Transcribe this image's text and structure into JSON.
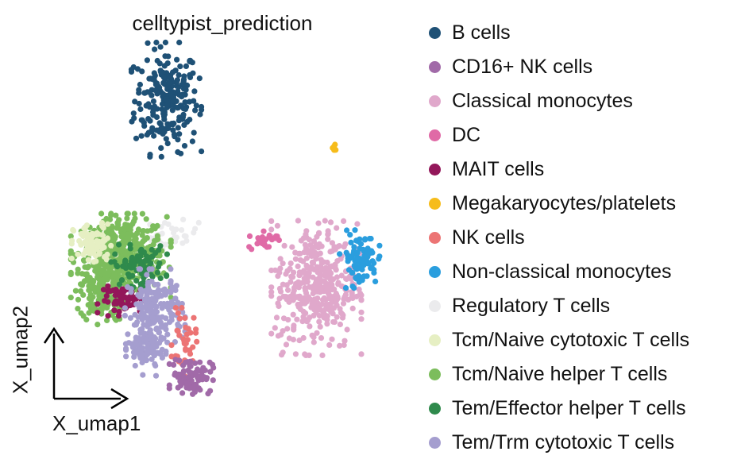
{
  "chart_data": {
    "type": "scatter",
    "title": "celltypist_prediction",
    "xlabel": "X_umap1",
    "ylabel": "X_umap2",
    "categories": [
      {
        "name": "B cells",
        "color": "#1f5176"
      },
      {
        "name": "CD16+ NK cells",
        "color": "#a16aa8"
      },
      {
        "name": "Classical monocytes",
        "color": "#e0a8cb"
      },
      {
        "name": "DC",
        "color": "#e06aa6"
      },
      {
        "name": "MAIT cells",
        "color": "#93175a"
      },
      {
        "name": "Megakaryocytes/platelets",
        "color": "#f6bc1a"
      },
      {
        "name": "NK cells",
        "color": "#ec7474"
      },
      {
        "name": "Non-classical monocytes",
        "color": "#2a9ede"
      },
      {
        "name": "Regulatory T cells",
        "color": "#ebebed"
      },
      {
        "name": "Tcm/Naive cytotoxic T cells",
        "color": "#e6efc3"
      },
      {
        "name": "Tcm/Naive helper T cells",
        "color": "#7cbd5c"
      },
      {
        "name": "Tem/Effector helper T cells",
        "color": "#2f8a4c"
      },
      {
        "name": "Tem/Trm cytotoxic T cells",
        "color": "#a59ecf"
      }
    ],
    "clusters": [
      {
        "category": "B cells",
        "cx": 2.2,
        "cy": 8.7,
        "sx": 0.35,
        "sy": 0.75,
        "n": 230
      },
      {
        "category": "Megakaryocytes/platelets",
        "cx": 5.9,
        "cy": 7.3,
        "sx": 0.05,
        "sy": 0.06,
        "n": 6
      },
      {
        "category": "Regulatory T cells",
        "cx": 2.3,
        "cy": 4.8,
        "sx": 0.3,
        "sy": 0.2,
        "n": 35
      },
      {
        "category": "Tcm/Naive helper T cells",
        "cx": 1.2,
        "cy": 4.2,
        "sx": 0.5,
        "sy": 0.55,
        "n": 420
      },
      {
        "category": "Tcm/Naive helper T cells",
        "cx": 0.8,
        "cy": 3.2,
        "sx": 0.25,
        "sy": 0.45,
        "n": 140
      },
      {
        "category": "Tcm/Naive cytotoxic T cells",
        "cx": 0.6,
        "cy": 4.5,
        "sx": 0.22,
        "sy": 0.3,
        "n": 90
      },
      {
        "category": "Tem/Effector helper T cells",
        "cx": 1.6,
        "cy": 3.9,
        "sx": 0.28,
        "sy": 0.28,
        "n": 90
      },
      {
        "category": "MAIT cells",
        "cx": 1.3,
        "cy": 2.9,
        "sx": 0.28,
        "sy": 0.2,
        "n": 60
      },
      {
        "category": "Tem/Trm cytotoxic T cells",
        "cx": 1.95,
        "cy": 2.6,
        "sx": 0.3,
        "sy": 0.55,
        "n": 190
      },
      {
        "category": "Tem/Trm cytotoxic T cells",
        "cx": 1.75,
        "cy": 1.5,
        "sx": 0.2,
        "sy": 0.35,
        "n": 90
      },
      {
        "category": "NK cells",
        "cx": 2.6,
        "cy": 1.7,
        "sx": 0.13,
        "sy": 0.45,
        "n": 35
      },
      {
        "category": "CD16+ NK cells",
        "cx": 2.75,
        "cy": 0.75,
        "sx": 0.22,
        "sy": 0.25,
        "n": 95
      },
      {
        "category": "Classical monocytes",
        "cx": 5.5,
        "cy": 3.3,
        "sx": 0.45,
        "sy": 0.9,
        "n": 380
      },
      {
        "category": "Non-classical monocytes",
        "cx": 6.45,
        "cy": 4.1,
        "sx": 0.2,
        "sy": 0.38,
        "n": 90
      },
      {
        "category": "DC",
        "cx": 4.35,
        "cy": 4.65,
        "sx": 0.15,
        "sy": 0.15,
        "n": 25
      }
    ],
    "xlim": [
      -0.5,
      7.8
    ],
    "ylim": [
      0.0,
      10.2
    ],
    "grid": false,
    "legend_position": "right"
  }
}
